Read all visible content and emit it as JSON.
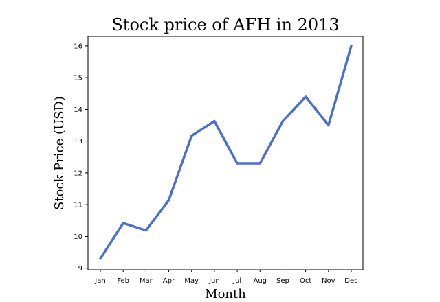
{
  "chart_data": {
    "type": "line",
    "title": "Stock price of AFH in 2013",
    "xlabel": "Month",
    "ylabel": "Stock Price (USD)",
    "categories": [
      "Jan",
      "Feb",
      "Mar",
      "Apr",
      "May",
      "Jun",
      "Jul",
      "Aug",
      "Sep",
      "Oct",
      "Nov",
      "Dec"
    ],
    "series": [
      {
        "values": [
          9.3,
          10.42,
          10.19,
          11.14,
          13.17,
          13.63,
          12.3,
          12.3,
          13.63,
          14.4,
          13.5,
          16.0
        ],
        "color": "#4a6fcf"
      }
    ],
    "ylim": [
      8.95,
      16.3
    ],
    "yticks": [
      9,
      10,
      11,
      12,
      13,
      14,
      15,
      16
    ],
    "grid": false,
    "legend": "none"
  }
}
